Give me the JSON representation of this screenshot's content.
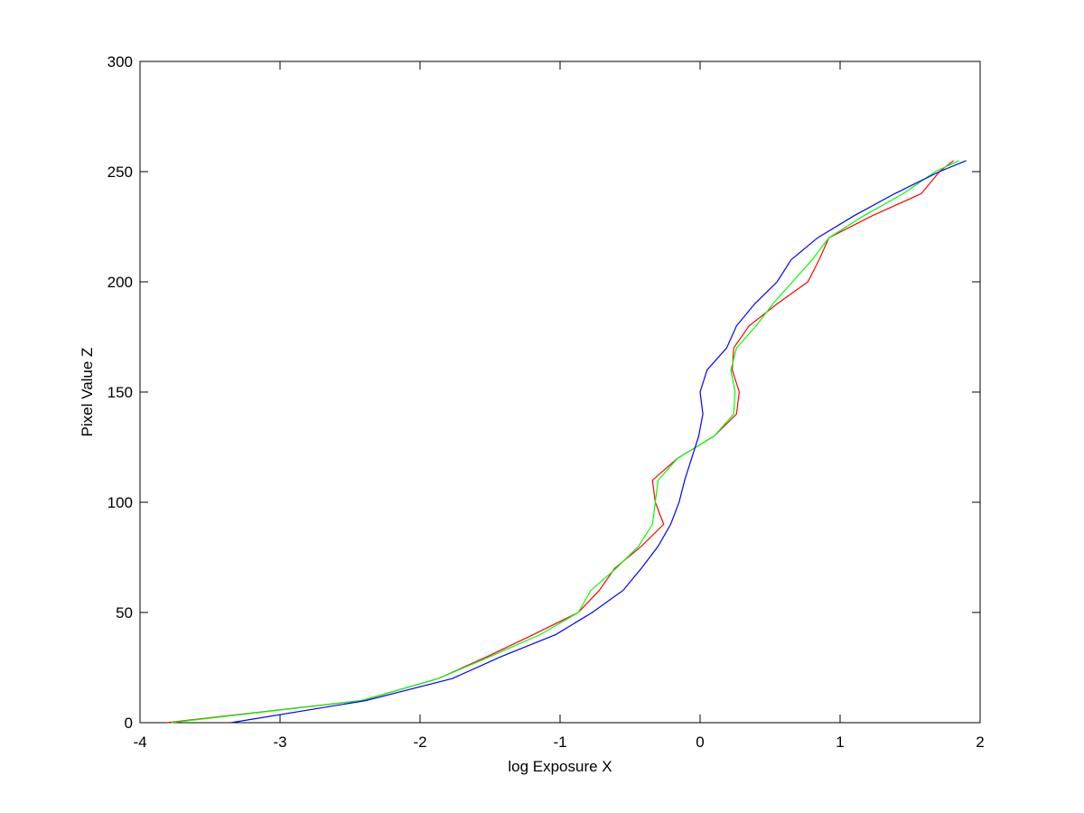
{
  "chart_data": {
    "type": "line",
    "x_label": "log Exposure X",
    "y_label": "Pixel Value Z",
    "xlim": [
      -4,
      2
    ],
    "xticks": [
      -4,
      -3,
      -2,
      -1,
      0,
      1,
      2
    ],
    "ylim": [
      0,
      300
    ],
    "yticks": [
      0,
      50,
      100,
      150,
      200,
      250,
      300
    ],
    "grid": false,
    "series": [
      {
        "color": "#ff0000",
        "x": [
          -3.81,
          -2.42,
          -1.87,
          -1.52,
          -1.19,
          -0.87,
          -0.72,
          -0.61,
          -0.42,
          -0.26,
          -0.32,
          -0.34,
          -0.16,
          0.1,
          0.26,
          0.28,
          0.23,
          0.24,
          0.35,
          0.55,
          0.77,
          0.85,
          0.92,
          1.23,
          1.58,
          1.71,
          1.81
        ],
        "values": [
          0,
          10,
          20,
          30,
          40,
          50,
          60,
          70,
          80,
          90,
          100,
          110,
          120,
          130,
          140,
          150,
          160,
          170,
          180,
          190,
          200,
          210,
          220,
          230,
          240,
          250,
          255
        ]
      },
      {
        "color": "#00ff00",
        "x": [
          -3.78,
          -2.42,
          -1.87,
          -1.5,
          -1.14,
          -0.87,
          -0.78,
          -0.6,
          -0.44,
          -0.34,
          -0.32,
          -0.3,
          -0.16,
          0.1,
          0.24,
          0.25,
          0.22,
          0.26,
          0.4,
          0.52,
          0.66,
          0.8,
          0.92,
          1.17,
          1.45,
          1.68,
          1.85
        ],
        "values": [
          0,
          10,
          20,
          30,
          40,
          50,
          60,
          70,
          80,
          90,
          100,
          110,
          120,
          130,
          140,
          150,
          160,
          170,
          180,
          190,
          200,
          210,
          220,
          230,
          240,
          250,
          255
        ]
      },
      {
        "color": "#0000ff",
        "x": [
          -3.35,
          -2.39,
          -1.77,
          -1.42,
          -1.03,
          -0.77,
          -0.55,
          -0.42,
          -0.3,
          -0.21,
          -0.15,
          -0.11,
          -0.06,
          -0.01,
          0.02,
          0.0,
          0.05,
          0.19,
          0.26,
          0.39,
          0.55,
          0.65,
          0.84,
          1.1,
          1.39,
          1.71,
          1.9
        ],
        "values": [
          0,
          10,
          20,
          30,
          40,
          50,
          60,
          70,
          80,
          90,
          100,
          110,
          120,
          130,
          140,
          150,
          160,
          170,
          180,
          190,
          200,
          210,
          220,
          230,
          240,
          250,
          255
        ]
      }
    ]
  }
}
